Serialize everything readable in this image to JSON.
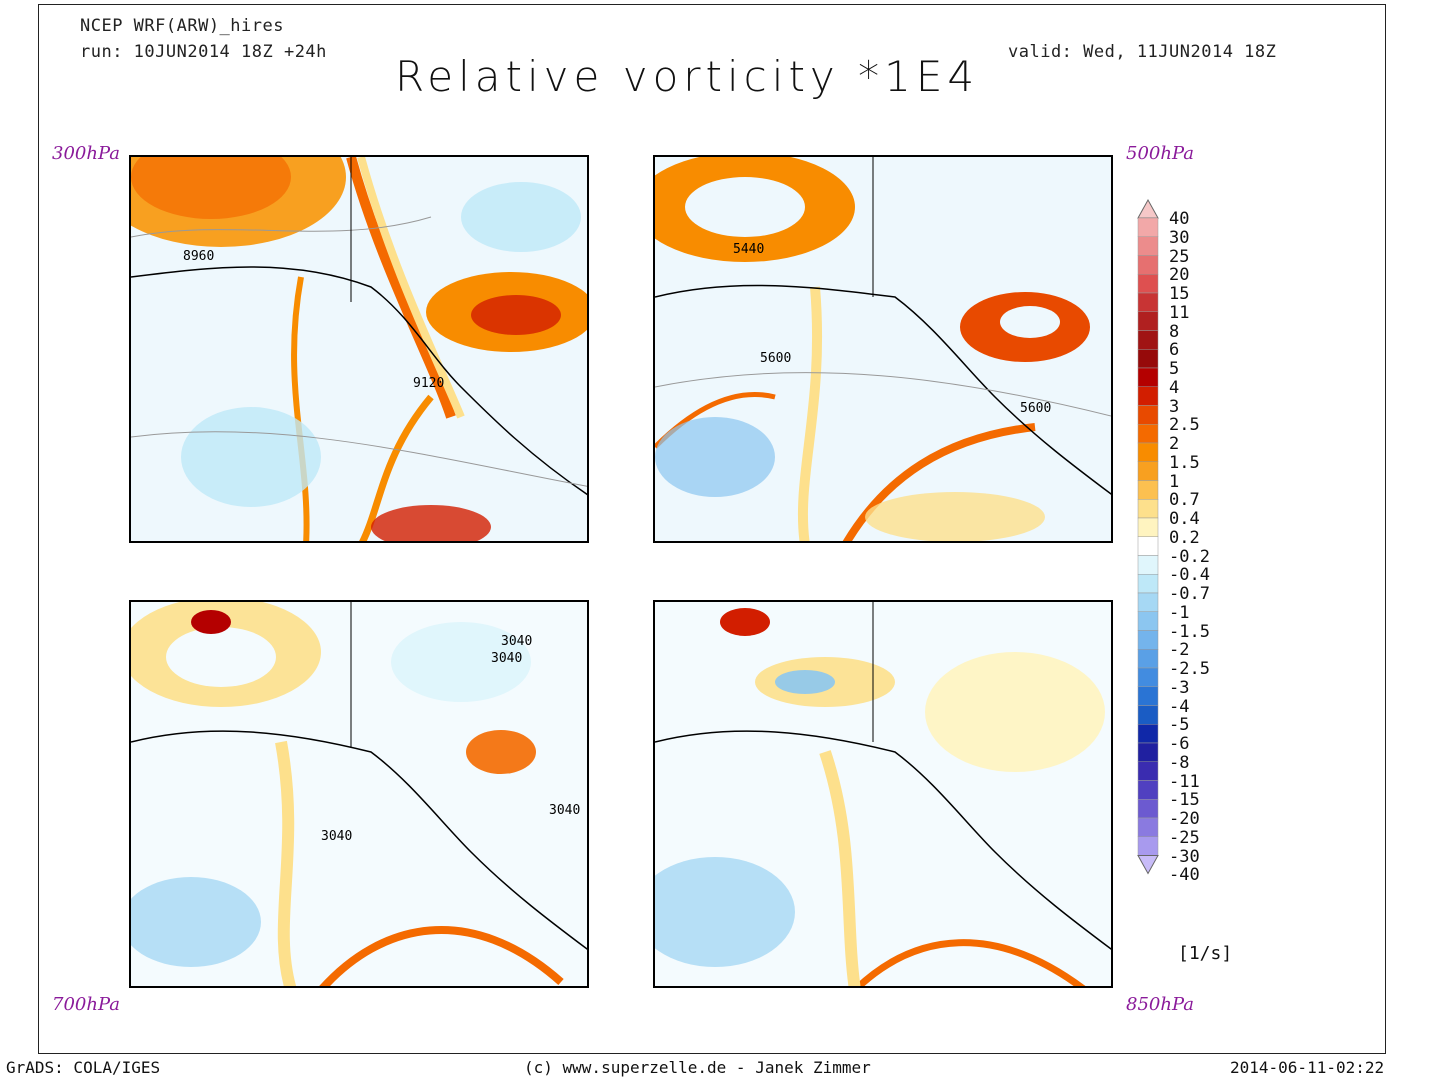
{
  "header": {
    "model": "NCEP WRF(ARW)_hires",
    "run": "run: 10JUN2014 18Z +24h",
    "valid": "valid: Wed, 11JUN2014 18Z",
    "title": "Relative vorticity *1E4"
  },
  "panels": [
    {
      "level": "300hPa",
      "contours": [
        "8960",
        "9120"
      ]
    },
    {
      "level": "500hPa",
      "contours": [
        "5440",
        "5600",
        "5600"
      ]
    },
    {
      "level": "700hPa",
      "contours": [
        "3040",
        "3040",
        "3040",
        "3040"
      ]
    },
    {
      "level": "850hPa",
      "contours": []
    }
  ],
  "colorbar": {
    "labels": [
      "40",
      "30",
      "25",
      "20",
      "15",
      "11",
      "8",
      "6",
      "5",
      "4",
      "3",
      "2.5",
      "2",
      "1.5",
      "1",
      "0.7",
      "0.4",
      "0.2",
      "-0.2",
      "-0.4",
      "-0.7",
      "-1",
      "-1.5",
      "-2",
      "-2.5",
      "-3",
      "-4",
      "-5",
      "-6",
      "-8",
      "-11",
      "-15",
      "-20",
      "-25",
      "-30",
      "-40"
    ],
    "colors": [
      "#f6c8c8",
      "#f2a8a8",
      "#ec8c8c",
      "#e67070",
      "#de5050",
      "#c83434",
      "#b02020",
      "#a01414",
      "#960a0a",
      "#b40000",
      "#d21e00",
      "#e84a00",
      "#f46a00",
      "#f88c00",
      "#f8a020",
      "#fcc050",
      "#fde08c",
      "#fff4c0",
      "#ffffff",
      "#e0f6fc",
      "#bee8f8",
      "#a6d8f4",
      "#8cc6f0",
      "#74b4ec",
      "#5aa0e6",
      "#428ce0",
      "#2a74d4",
      "#1a5cc4",
      "#1028a8",
      "#2020a0",
      "#3a2cb0",
      "#5040c0",
      "#6c5ad0",
      "#8a7ae0",
      "#a89aee",
      "#c8bcf8"
    ],
    "unit": "[1/s]"
  },
  "footer": {
    "left": "GrADS: COLA/IGES",
    "center": "(c) www.superzelle.de - Janek Zimmer",
    "right": "2014-06-11-02:22"
  }
}
